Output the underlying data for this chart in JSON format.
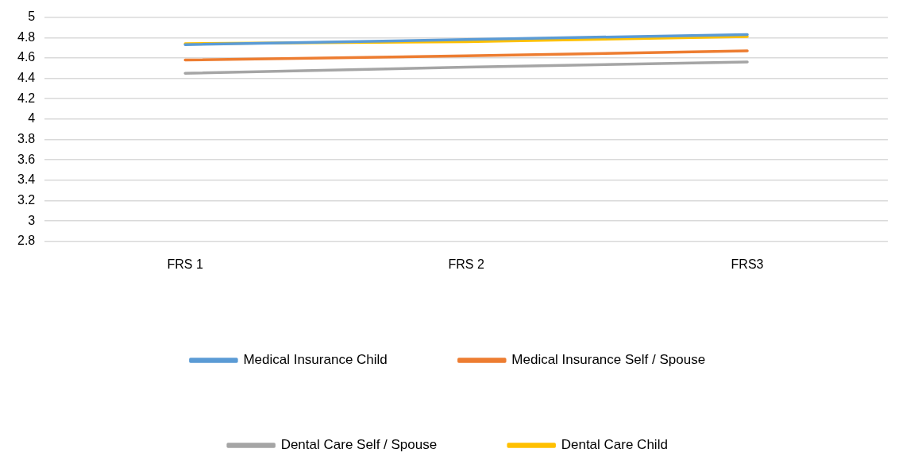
{
  "chart_data": {
    "type": "line",
    "categories": [
      "FRS 1",
      "FRS 2",
      "FRS3"
    ],
    "series": [
      {
        "name": "Medical Insurance Child",
        "color": "#5b9bd5",
        "values": [
          4.73,
          4.78,
          4.83
        ]
      },
      {
        "name": "Medical Insurance Self / Spouse",
        "color": "#ed7d31",
        "values": [
          4.58,
          4.62,
          4.67
        ]
      },
      {
        "name": "Dental Care Self / Spouse",
        "color": "#a5a5a5",
        "values": [
          4.45,
          4.51,
          4.56
        ]
      },
      {
        "name": "Dental Care Child",
        "color": "#ffc000",
        "values": [
          4.74,
          4.76,
          4.81
        ]
      }
    ],
    "ylim": [
      2.8,
      5
    ],
    "yticks": [
      2.8,
      3,
      3.2,
      3.4,
      3.6,
      3.8,
      4,
      4.2,
      4.4,
      4.6,
      4.8,
      5
    ],
    "grid": "y",
    "legend": "bottom",
    "marker": "none",
    "line_style": "solid"
  }
}
